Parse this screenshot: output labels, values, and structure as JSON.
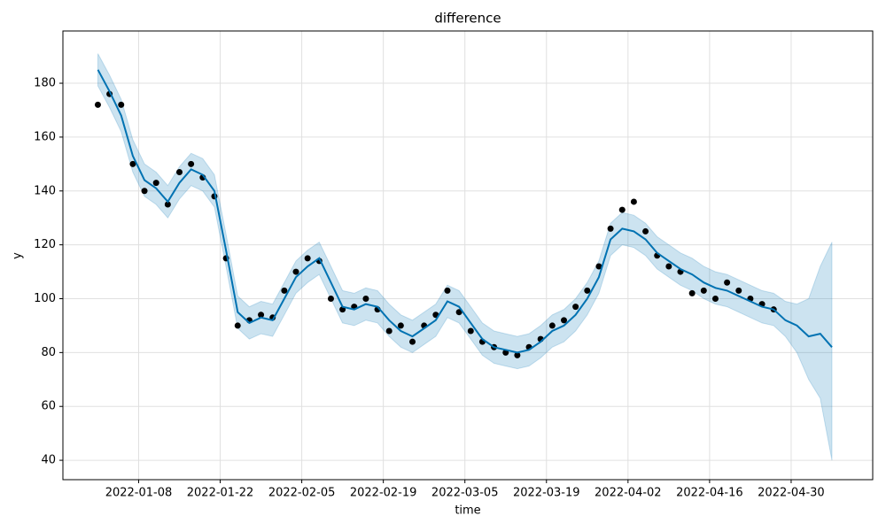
{
  "chart_data": {
    "type": "forecast",
    "title": "difference",
    "xlabel": "time",
    "ylabel": "y",
    "x": [
      "2022-01-01",
      "2022-01-03",
      "2022-01-05",
      "2022-01-07",
      "2022-01-09",
      "2022-01-11",
      "2022-01-13",
      "2022-01-15",
      "2022-01-17",
      "2022-01-19",
      "2022-01-21",
      "2022-01-23",
      "2022-01-25",
      "2022-01-27",
      "2022-01-29",
      "2022-01-31",
      "2022-02-02",
      "2022-02-04",
      "2022-02-06",
      "2022-02-08",
      "2022-02-10",
      "2022-02-12",
      "2022-02-14",
      "2022-02-16",
      "2022-02-18",
      "2022-02-20",
      "2022-02-22",
      "2022-02-24",
      "2022-02-26",
      "2022-02-28",
      "2022-03-02",
      "2022-03-04",
      "2022-03-06",
      "2022-03-08",
      "2022-03-10",
      "2022-03-12",
      "2022-03-14",
      "2022-03-16",
      "2022-03-18",
      "2022-03-20",
      "2022-03-22",
      "2022-03-24",
      "2022-03-26",
      "2022-03-28",
      "2022-03-30",
      "2022-04-01",
      "2022-04-03",
      "2022-04-05",
      "2022-04-07",
      "2022-04-09",
      "2022-04-11",
      "2022-04-13",
      "2022-04-15",
      "2022-04-17",
      "2022-04-19",
      "2022-04-21",
      "2022-04-23",
      "2022-04-25",
      "2022-04-27",
      "2022-04-29",
      "2022-05-01",
      "2022-05-03",
      "2022-05-05",
      "2022-05-07"
    ],
    "band": {
      "color": "#0072B2",
      "lower": [
        179,
        171,
        162,
        147,
        138,
        135,
        130,
        137,
        142,
        140,
        134,
        112,
        89,
        85,
        87,
        86,
        94,
        102,
        106,
        109,
        100,
        91,
        90,
        92,
        91,
        86,
        82,
        80,
        83,
        86,
        93,
        91,
        85,
        79,
        76,
        75,
        74,
        75,
        78,
        82,
        84,
        88,
        94,
        102,
        116,
        120,
        119,
        116,
        111,
        108,
        105,
        103,
        100,
        98,
        97,
        95,
        93,
        91,
        90,
        86,
        80,
        70,
        63,
        40
      ],
      "upper": [
        191,
        183,
        174,
        159,
        150,
        147,
        142,
        149,
        154,
        152,
        146,
        124,
        101,
        97,
        99,
        98,
        106,
        114,
        118,
        121,
        112,
        103,
        102,
        104,
        103,
        98,
        94,
        92,
        95,
        98,
        105,
        103,
        97,
        91,
        88,
        87,
        86,
        87,
        90,
        94,
        96,
        100,
        106,
        114,
        128,
        132,
        131,
        128,
        123,
        120,
        117,
        115,
        112,
        110,
        109,
        107,
        105,
        103,
        102,
        99,
        98,
        100,
        112,
        121
      ]
    },
    "series": [
      {
        "type": "scatter",
        "color": "#000000",
        "values": [
          172,
          176,
          172,
          150,
          140,
          143,
          135,
          147,
          150,
          145,
          138,
          115,
          90,
          92,
          94,
          93,
          103,
          110,
          115,
          114,
          100,
          96,
          97,
          100,
          96,
          88,
          90,
          84,
          90,
          94,
          103,
          95,
          88,
          84,
          82,
          80,
          79,
          82,
          85,
          90,
          92,
          97,
          103,
          112,
          126,
          133,
          136,
          125,
          116,
          112,
          110,
          102,
          103,
          100,
          106,
          103,
          100,
          98,
          96,
          null,
          null,
          null,
          null,
          null
        ]
      },
      {
        "type": "line",
        "color": "#0072B2",
        "values": [
          185,
          177,
          168,
          153,
          144,
          141,
          136,
          143,
          148,
          146,
          140,
          118,
          95,
          91,
          93,
          92,
          100,
          108,
          112,
          115,
          106,
          97,
          96,
          98,
          97,
          92,
          88,
          86,
          89,
          92,
          99,
          97,
          91,
          85,
          82,
          81,
          80,
          81,
          84,
          88,
          90,
          94,
          100,
          108,
          122,
          126,
          125,
          122,
          117,
          114,
          111,
          109,
          106,
          104,
          103,
          101,
          99,
          97,
          96,
          92,
          90,
          86,
          87,
          82
        ]
      }
    ],
    "xlim": [
      "2021-12-26",
      "2022-05-14"
    ],
    "ylim": [
      32.8,
      199.4
    ],
    "xticks": [
      "2022-01-08",
      "2022-01-22",
      "2022-02-05",
      "2022-02-19",
      "2022-03-05",
      "2022-03-19",
      "2022-04-02",
      "2022-04-16",
      "2022-04-30"
    ],
    "yticks": [
      40,
      60,
      80,
      100,
      120,
      140,
      160,
      180
    ],
    "grid": true
  }
}
